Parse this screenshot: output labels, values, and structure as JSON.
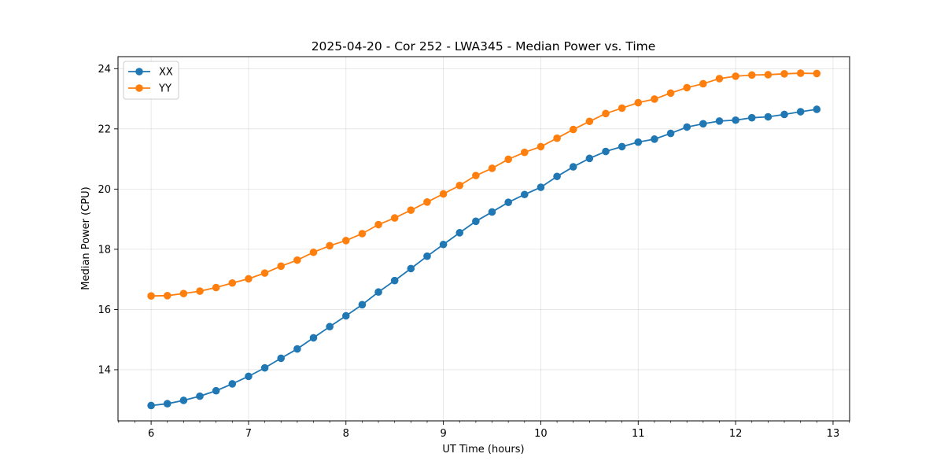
{
  "chart_data": {
    "type": "line",
    "title": "2025-04-20 - Cor 252 - LWA345 - Median Power vs. Time",
    "xlabel": "UT Time (hours)",
    "ylabel": "Median Power (CPU)",
    "xlim": [
      5.66,
      13.17
    ],
    "ylim": [
      12.3,
      24.4
    ],
    "xticks": [
      6,
      7,
      8,
      9,
      10,
      11,
      12,
      13
    ],
    "xtick_labels": [
      "6",
      "7",
      "8",
      "9",
      "10",
      "11",
      "12",
      "13"
    ],
    "yticks": [
      14,
      16,
      18,
      20,
      22,
      24
    ],
    "ytick_labels": [
      "14",
      "16",
      "18",
      "20",
      "22",
      "24"
    ],
    "grid": true,
    "legend_position": "top-left",
    "x": [
      6.0,
      6.1667,
      6.3333,
      6.5,
      6.6667,
      6.8333,
      7.0,
      7.1667,
      7.3333,
      7.5,
      7.6667,
      7.8333,
      8.0,
      8.1667,
      8.3333,
      8.5,
      8.6667,
      8.8333,
      9.0,
      9.1667,
      9.3333,
      9.5,
      9.6667,
      9.8333,
      10.0,
      10.1667,
      10.3333,
      10.5,
      10.6667,
      10.8333,
      11.0,
      11.1667,
      11.3333,
      11.5,
      11.6667,
      11.8333,
      12.0,
      12.1667,
      12.3333,
      12.5,
      12.6667,
      12.8333
    ],
    "series": [
      {
        "name": "XX",
        "color": "#1f77b4",
        "values": [
          12.81,
          12.87,
          12.98,
          13.12,
          13.3,
          13.53,
          13.78,
          14.06,
          14.38,
          14.69,
          15.06,
          15.43,
          15.79,
          16.16,
          16.58,
          16.96,
          17.36,
          17.77,
          18.16,
          18.55,
          18.93,
          19.24,
          19.56,
          19.82,
          20.06,
          20.42,
          20.74,
          21.02,
          21.25,
          21.41,
          21.56,
          21.66,
          21.85,
          22.06,
          22.17,
          22.26,
          22.29,
          22.37,
          22.4,
          22.48,
          22.57,
          22.65
        ]
      },
      {
        "name": "YY",
        "color": "#ff7f0e",
        "values": [
          16.45,
          16.46,
          16.53,
          16.61,
          16.73,
          16.88,
          17.02,
          17.21,
          17.44,
          17.64,
          17.9,
          18.12,
          18.29,
          18.52,
          18.82,
          19.04,
          19.3,
          19.57,
          19.84,
          20.12,
          20.45,
          20.69,
          20.99,
          21.22,
          21.41,
          21.69,
          21.98,
          22.25,
          22.51,
          22.69,
          22.87,
          22.99,
          23.19,
          23.37,
          23.5,
          23.67,
          23.75,
          23.79,
          23.8,
          23.83,
          23.85,
          23.84
        ]
      }
    ]
  }
}
